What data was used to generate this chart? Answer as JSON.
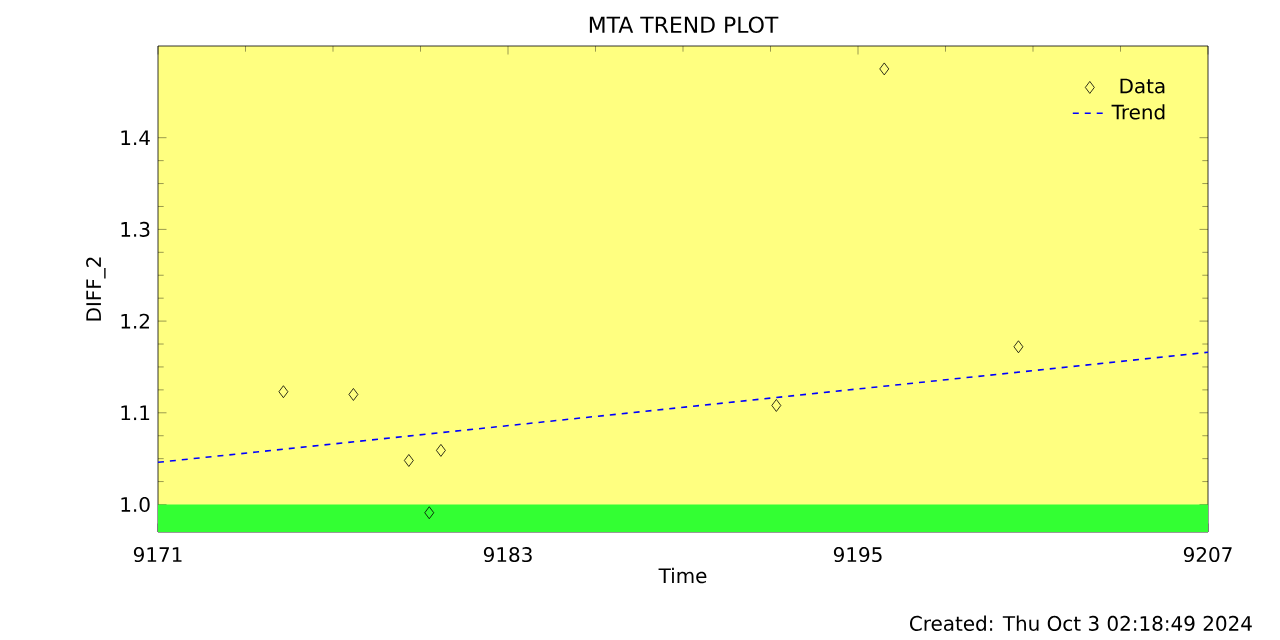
{
  "chart_data": {
    "type": "scatter",
    "title": "MTA TREND PLOT",
    "xlabel": "Time",
    "ylabel": "DIFF_2",
    "annotations": [
      "Created: Thu Oct  3 02:18:49 2024"
    ],
    "xlim": [
      9171,
      9207
    ],
    "ylim": [
      0.97,
      1.5
    ],
    "xticks": [
      9171,
      9183,
      9195,
      9207
    ],
    "yticks": [
      {
        "value": 1.0,
        "label": "1.0"
      },
      {
        "value": 1.1,
        "label": "1.1"
      },
      {
        "value": 1.2,
        "label": "1.2"
      },
      {
        "value": 1.3,
        "label": "1.3"
      },
      {
        "value": 1.4,
        "label": "1.4"
      }
    ],
    "bands": [
      {
        "axis": "y",
        "from": 0.97,
        "to": 1.0,
        "color": "#33ff33"
      }
    ],
    "legend": "top right",
    "grid": false,
    "series": [
      {
        "name": "Data",
        "color": "#000000",
        "marker": "diamond",
        "x": [
          9175.3,
          9177.7,
          9179.6,
          9180.3,
          9180.7,
          9192.2,
          9195.9,
          9200.5
        ],
        "values": [
          1.123,
          1.12,
          1.048,
          0.991,
          1.059,
          1.108,
          1.475,
          1.172
        ]
      },
      {
        "name": "Trend",
        "type": "line",
        "color": "#0000ff",
        "line_style": "dashed",
        "x": [
          9171,
          9207
        ],
        "values": [
          1.046,
          1.166
        ]
      }
    ]
  }
}
